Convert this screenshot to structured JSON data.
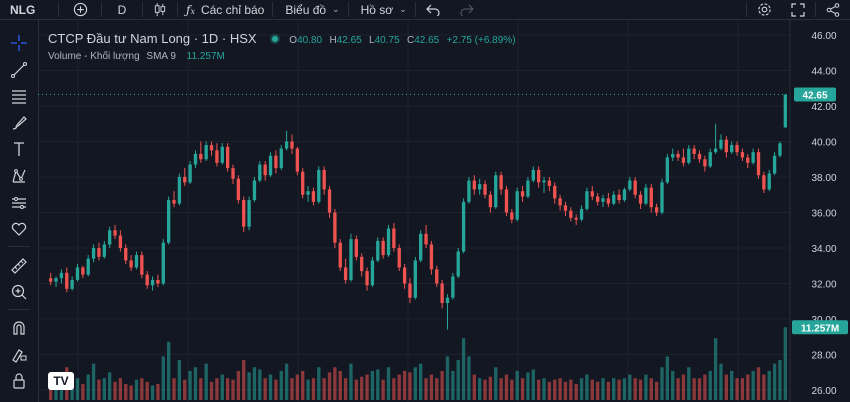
{
  "toolbar": {
    "symbol": "NLG",
    "interval": "D",
    "indicators_label": "Các chỉ báo",
    "chart_menu_label": "Biểu đồ",
    "profile_menu_label": "Hồ sơ"
  },
  "legend": {
    "title": "CTCP Đầu tư Nam Long · 1D · HSX",
    "open_label": "O",
    "open": "40.80",
    "high_label": "H",
    "high": "42.65",
    "low_label": "L",
    "low": "40.75",
    "close_label": "C",
    "close": "42.65",
    "change": "+2.75 (+6.89%)",
    "volume_label": "Volume - Khối lượng",
    "volume_ma": "SMA 9",
    "volume_value": "11.257M"
  },
  "watermark": "TV",
  "colors": {
    "up": "#26a69a",
    "down": "#ef5350",
    "background": "#131722",
    "grid": "#1e222d",
    "text": "#d1d4dc"
  },
  "icons": {
    "sidebar": [
      "crosshair-icon",
      "trend-line-icon",
      "fib-lines-icon",
      "brush-icon",
      "text-icon",
      "pattern-icon",
      "projection-icon",
      "heart-icon",
      "ruler-icon",
      "zoom-in-icon",
      "magnet-icon",
      "lock-drawing-icon",
      "lock-icon"
    ]
  },
  "chart_data": {
    "type": "candlestick",
    "price_axis": {
      "ticks": [
        "46.00",
        "44.00",
        "42.00",
        "40.00",
        "38.00",
        "36.00",
        "34.00",
        "32.00",
        "30.00",
        "28.00",
        "26.00"
      ],
      "ylim": [
        26,
        46
      ]
    },
    "last_price_label": "42.65",
    "volume_last_label": "11.257M",
    "ohlc": [
      [
        32.3,
        32.6,
        31.9,
        32.1
      ],
      [
        32.1,
        32.4,
        31.8,
        32.3
      ],
      [
        32.3,
        32.8,
        32.0,
        32.6
      ],
      [
        32.6,
        32.9,
        31.5,
        31.7
      ],
      [
        31.7,
        32.4,
        31.6,
        32.2
      ],
      [
        32.2,
        33.1,
        32.1,
        32.9
      ],
      [
        32.9,
        33.0,
        32.3,
        32.5
      ],
      [
        32.5,
        33.6,
        32.4,
        33.4
      ],
      [
        33.4,
        34.2,
        33.2,
        34.0
      ],
      [
        34.0,
        34.3,
        33.3,
        33.5
      ],
      [
        33.5,
        34.4,
        33.4,
        34.2
      ],
      [
        34.2,
        35.2,
        34.0,
        35.0
      ],
      [
        35.0,
        35.3,
        34.5,
        34.7
      ],
      [
        34.7,
        35.0,
        33.8,
        34.0
      ],
      [
        34.0,
        34.2,
        33.1,
        33.3
      ],
      [
        33.3,
        33.6,
        32.7,
        32.9
      ],
      [
        32.9,
        33.8,
        32.8,
        33.6
      ],
      [
        33.6,
        33.8,
        32.3,
        32.5
      ],
      [
        32.5,
        32.7,
        31.7,
        31.9
      ],
      [
        31.9,
        32.4,
        31.6,
        32.2
      ],
      [
        32.2,
        32.5,
        31.8,
        32.0
      ],
      [
        32.0,
        34.5,
        31.9,
        34.3
      ],
      [
        34.3,
        36.9,
        34.2,
        36.7
      ],
      [
        36.7,
        37.2,
        36.3,
        36.5
      ],
      [
        36.5,
        38.2,
        36.4,
        38.0
      ],
      [
        38.0,
        38.5,
        37.5,
        37.7
      ],
      [
        37.7,
        38.9,
        37.6,
        38.7
      ],
      [
        38.7,
        39.5,
        38.5,
        39.3
      ],
      [
        39.3,
        40.0,
        38.8,
        39.0
      ],
      [
        39.0,
        40.0,
        38.9,
        39.8
      ],
      [
        39.8,
        40.0,
        39.2,
        39.5
      ],
      [
        39.5,
        39.9,
        38.6,
        38.8
      ],
      [
        38.8,
        39.9,
        38.7,
        39.7
      ],
      [
        39.7,
        39.9,
        38.3,
        38.5
      ],
      [
        38.5,
        38.7,
        37.6,
        37.9
      ],
      [
        37.9,
        38.1,
        36.5,
        36.7
      ],
      [
        36.7,
        36.9,
        34.9,
        35.2
      ],
      [
        35.2,
        36.9,
        35.0,
        36.7
      ],
      [
        36.7,
        38.0,
        36.6,
        37.8
      ],
      [
        37.8,
        38.9,
        37.7,
        38.7
      ],
      [
        38.7,
        38.9,
        37.8,
        38.1
      ],
      [
        38.1,
        39.4,
        38.0,
        39.2
      ],
      [
        39.2,
        39.5,
        38.2,
        38.5
      ],
      [
        38.5,
        39.8,
        38.4,
        39.6
      ],
      [
        39.6,
        40.6,
        39.5,
        40.0
      ],
      [
        40.0,
        40.4,
        39.3,
        39.6
      ],
      [
        39.6,
        39.7,
        38.1,
        38.3
      ],
      [
        38.3,
        38.5,
        36.8,
        37.0
      ],
      [
        37.0,
        37.5,
        36.6,
        37.2
      ],
      [
        37.2,
        37.4,
        36.4,
        36.6
      ],
      [
        36.6,
        38.6,
        36.5,
        38.4
      ],
      [
        38.4,
        38.6,
        37.0,
        37.3
      ],
      [
        37.3,
        37.5,
        35.7,
        36.0
      ],
      [
        36.0,
        36.2,
        34.0,
        34.3
      ],
      [
        34.3,
        34.5,
        32.7,
        32.9
      ],
      [
        32.9,
        33.4,
        32.0,
        32.2
      ],
      [
        32.2,
        34.8,
        32.1,
        34.5
      ],
      [
        34.5,
        34.7,
        33.3,
        33.5
      ],
      [
        33.5,
        33.7,
        32.4,
        32.7
      ],
      [
        32.7,
        32.9,
        31.6,
        31.9
      ],
      [
        31.9,
        33.5,
        31.8,
        33.3
      ],
      [
        33.3,
        34.6,
        33.2,
        34.4
      ],
      [
        34.4,
        34.6,
        33.4,
        33.6
      ],
      [
        33.6,
        35.3,
        33.5,
        35.1
      ],
      [
        35.1,
        35.4,
        33.8,
        34.0
      ],
      [
        34.0,
        34.2,
        32.7,
        32.9
      ],
      [
        32.9,
        33.1,
        31.7,
        32.0
      ],
      [
        32.0,
        32.3,
        30.9,
        31.2
      ],
      [
        31.2,
        33.5,
        31.1,
        33.3
      ],
      [
        33.3,
        35.0,
        33.2,
        34.8
      ],
      [
        34.8,
        35.3,
        34.0,
        34.2
      ],
      [
        34.2,
        34.4,
        32.5,
        32.8
      ],
      [
        32.8,
        33.0,
        31.8,
        32.0
      ],
      [
        32.0,
        32.2,
        30.6,
        30.9
      ],
      [
        30.9,
        31.4,
        29.4,
        31.2
      ],
      [
        31.2,
        32.6,
        31.1,
        32.4
      ],
      [
        32.4,
        34.0,
        32.3,
        33.8
      ],
      [
        33.8,
        36.8,
        33.7,
        36.6
      ],
      [
        36.6,
        38.0,
        36.5,
        37.8
      ],
      [
        37.8,
        38.1,
        37.0,
        37.3
      ],
      [
        37.3,
        37.9,
        37.0,
        37.6
      ],
      [
        37.6,
        37.8,
        36.8,
        37.0
      ],
      [
        37.0,
        37.2,
        36.0,
        36.3
      ],
      [
        36.3,
        38.3,
        36.2,
        38.1
      ],
      [
        38.1,
        38.3,
        37.0,
        37.3
      ],
      [
        37.3,
        37.5,
        35.8,
        36.0
      ],
      [
        36.0,
        36.2,
        35.4,
        35.6
      ],
      [
        35.6,
        37.4,
        35.5,
        37.2
      ],
      [
        37.2,
        37.5,
        36.6,
        36.9
      ],
      [
        36.9,
        38.0,
        36.8,
        37.8
      ],
      [
        37.8,
        38.6,
        37.7,
        38.4
      ],
      [
        38.4,
        38.6,
        37.4,
        37.7
      ],
      [
        37.7,
        38.0,
        37.1,
        37.8
      ],
      [
        37.8,
        38.0,
        37.2,
        37.5
      ],
      [
        37.5,
        37.7,
        36.5,
        36.8
      ],
      [
        36.8,
        37.0,
        36.1,
        36.4
      ],
      [
        36.4,
        36.6,
        35.8,
        36.1
      ],
      [
        36.1,
        36.3,
        35.5,
        35.7
      ],
      [
        35.7,
        35.9,
        35.3,
        35.6
      ],
      [
        35.6,
        36.4,
        35.5,
        36.2
      ],
      [
        36.2,
        37.4,
        36.1,
        37.2
      ],
      [
        37.2,
        37.5,
        36.7,
        36.9
      ],
      [
        36.9,
        37.1,
        36.4,
        36.6
      ],
      [
        36.6,
        37.0,
        36.3,
        36.8
      ],
      [
        36.8,
        37.1,
        36.3,
        36.5
      ],
      [
        36.5,
        37.2,
        36.4,
        37.0
      ],
      [
        37.0,
        37.3,
        36.5,
        36.7
      ],
      [
        36.7,
        37.4,
        36.6,
        37.3
      ],
      [
        37.3,
        38.0,
        37.2,
        37.8
      ],
      [
        37.8,
        38.0,
        36.8,
        37.0
      ],
      [
        37.0,
        37.2,
        36.2,
        36.5
      ],
      [
        36.5,
        37.6,
        36.4,
        37.4
      ],
      [
        37.4,
        37.6,
        36.0,
        36.3
      ],
      [
        36.3,
        36.5,
        35.8,
        36.0
      ],
      [
        36.0,
        37.9,
        35.9,
        37.7
      ],
      [
        37.7,
        39.3,
        37.6,
        39.1
      ],
      [
        39.1,
        39.6,
        38.9,
        39.3
      ],
      [
        39.3,
        39.5,
        38.9,
        39.1
      ],
      [
        39.1,
        39.6,
        38.6,
        38.8
      ],
      [
        38.8,
        39.8,
        38.7,
        39.6
      ],
      [
        39.6,
        39.8,
        39.0,
        39.3
      ],
      [
        39.3,
        39.5,
        38.8,
        39.0
      ],
      [
        39.0,
        39.2,
        38.3,
        38.6
      ],
      [
        38.6,
        39.6,
        38.5,
        39.4
      ],
      [
        39.4,
        41.0,
        39.3,
        39.6
      ],
      [
        39.6,
        40.4,
        39.5,
        40.1
      ],
      [
        40.1,
        40.3,
        39.1,
        39.4
      ],
      [
        39.4,
        40.0,
        39.3,
        39.8
      ],
      [
        39.8,
        40.0,
        39.2,
        39.4
      ],
      [
        39.4,
        39.6,
        38.9,
        39.1
      ],
      [
        39.1,
        39.3,
        38.5,
        38.8
      ],
      [
        38.8,
        39.6,
        38.7,
        39.4
      ],
      [
        39.4,
        39.6,
        37.9,
        38.1
      ],
      [
        38.1,
        38.3,
        37.1,
        37.3
      ],
      [
        37.3,
        38.4,
        37.2,
        38.2
      ],
      [
        38.2,
        39.4,
        38.1,
        39.2
      ],
      [
        39.2,
        40.0,
        39.1,
        39.9
      ],
      [
        40.8,
        42.65,
        40.75,
        42.65
      ]
    ],
    "volume_relative": [
      0.25,
      0.18,
      0.3,
      0.45,
      0.2,
      0.3,
      0.22,
      0.35,
      0.5,
      0.28,
      0.3,
      0.38,
      0.25,
      0.3,
      0.22,
      0.2,
      0.28,
      0.3,
      0.25,
      0.2,
      0.22,
      0.6,
      0.8,
      0.3,
      0.55,
      0.28,
      0.4,
      0.45,
      0.3,
      0.5,
      0.25,
      0.3,
      0.35,
      0.3,
      0.28,
      0.4,
      0.55,
      0.38,
      0.45,
      0.42,
      0.3,
      0.35,
      0.28,
      0.4,
      0.5,
      0.3,
      0.35,
      0.4,
      0.28,
      0.3,
      0.45,
      0.3,
      0.38,
      0.45,
      0.4,
      0.3,
      0.5,
      0.28,
      0.32,
      0.35,
      0.4,
      0.42,
      0.28,
      0.45,
      0.3,
      0.35,
      0.4,
      0.38,
      0.45,
      0.5,
      0.3,
      0.35,
      0.3,
      0.4,
      0.6,
      0.4,
      0.55,
      0.85,
      0.6,
      0.35,
      0.3,
      0.28,
      0.32,
      0.45,
      0.3,
      0.35,
      0.28,
      0.4,
      0.3,
      0.38,
      0.42,
      0.28,
      0.3,
      0.25,
      0.28,
      0.3,
      0.25,
      0.28,
      0.22,
      0.3,
      0.35,
      0.28,
      0.25,
      0.3,
      0.25,
      0.3,
      0.28,
      0.3,
      0.35,
      0.3,
      0.28,
      0.35,
      0.3,
      0.25,
      0.45,
      0.6,
      0.4,
      0.3,
      0.35,
      0.45,
      0.3,
      0.3,
      0.35,
      0.4,
      0.85,
      0.5,
      0.35,
      0.4,
      0.3,
      0.3,
      0.35,
      0.4,
      0.45,
      0.35,
      0.4,
      0.5,
      0.55,
      1.0
    ],
    "volume_ylim": [
      0,
      1.1
    ],
    "grid": true
  }
}
